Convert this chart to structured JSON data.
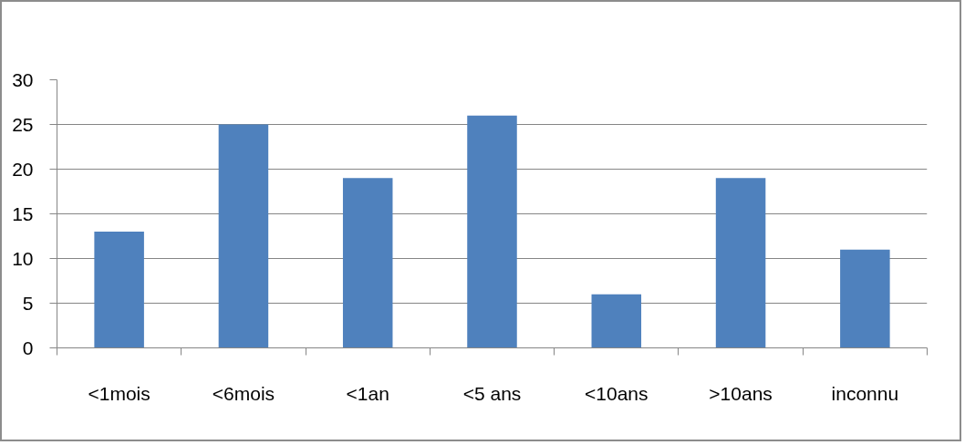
{
  "chart_data": {
    "type": "bar",
    "categories": [
      "<1mois",
      "<6mois",
      "<1an",
      "<5 ans",
      "<10ans",
      ">10ans",
      "inconnu"
    ],
    "values": [
      13,
      25,
      19,
      26,
      6,
      19,
      11
    ],
    "color": "#4f81bd",
    "ylim": [
      0,
      30
    ],
    "yticks": [
      0,
      5,
      10,
      15,
      20,
      25,
      30
    ],
    "grid": "y"
  }
}
